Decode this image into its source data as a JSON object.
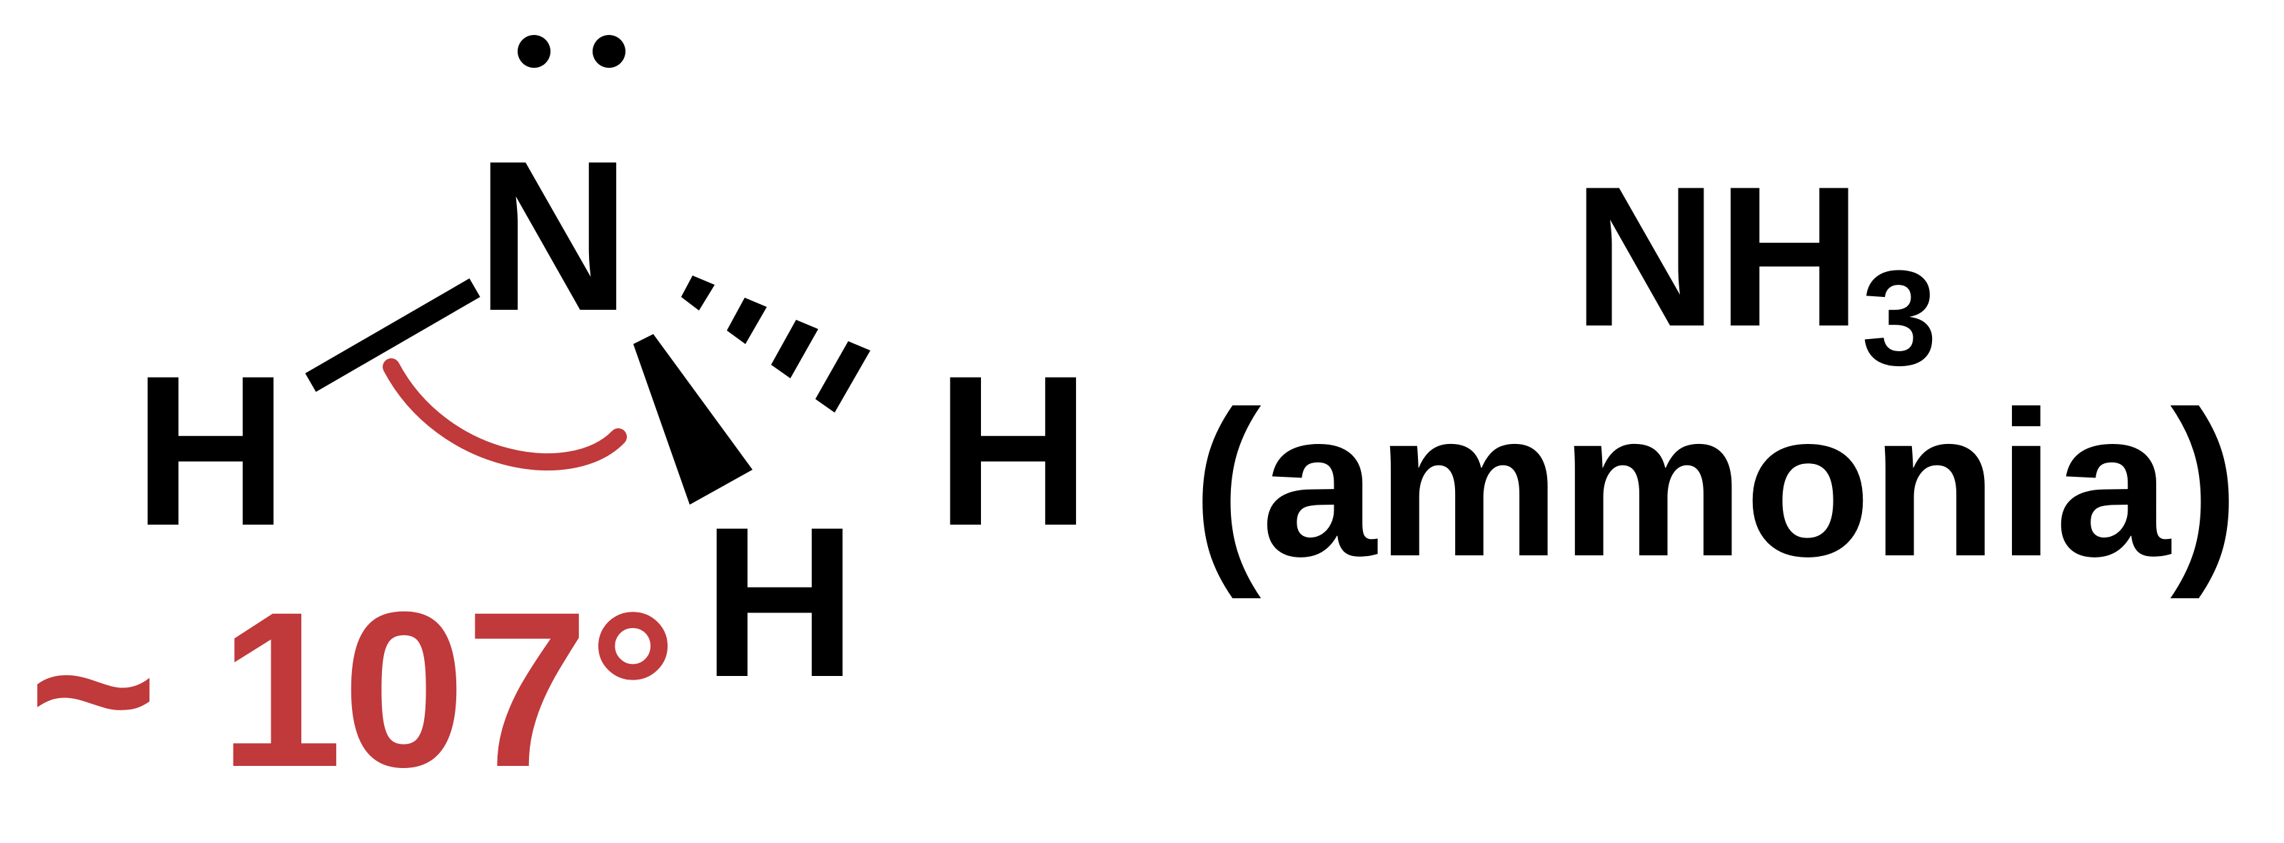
{
  "molecule": {
    "central_atom": "N",
    "substituents": [
      "H",
      "H",
      "H"
    ],
    "lone_pair_dots": 2
  },
  "angle": {
    "text": "~ 107°"
  },
  "formula": {
    "main": "NH",
    "subscript": "3",
    "name": "(ammonia)"
  },
  "colors": {
    "bond": "#000000",
    "angle": "#c0393b",
    "text": "#000000"
  }
}
